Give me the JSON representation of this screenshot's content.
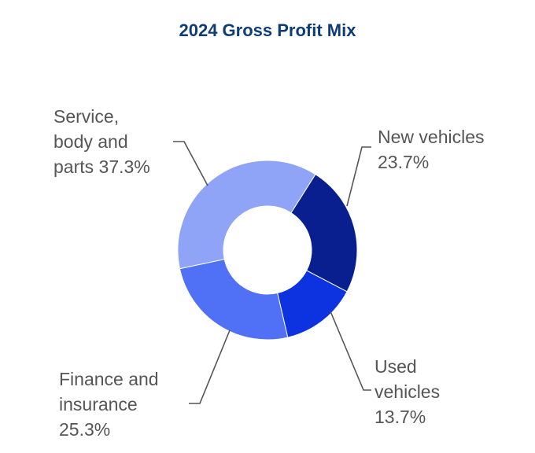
{
  "chart_data": {
    "type": "pie",
    "variant": "donut",
    "title": "2024 Gross Profit Mix",
    "slices": [
      {
        "label_lines": [
          "New vehicles",
          "23.7%"
        ],
        "value": 23.7,
        "color": "#0a1f8f"
      },
      {
        "label_lines": [
          "Used",
          "vehicles",
          "13.7%"
        ],
        "value": 13.7,
        "color": "#0d33e0"
      },
      {
        "label_lines": [
          "Finance and",
          "insurance",
          "25.3%"
        ],
        "value": 25.3,
        "color": "#5070f5"
      },
      {
        "label_lines": [
          "Service,",
          "body and",
          "parts 37.3%"
        ],
        "value": 37.3,
        "color": "#8fa3f7"
      }
    ],
    "title_color": "#0f3d73",
    "label_color": "#555555",
    "leader_color": "#555555"
  }
}
